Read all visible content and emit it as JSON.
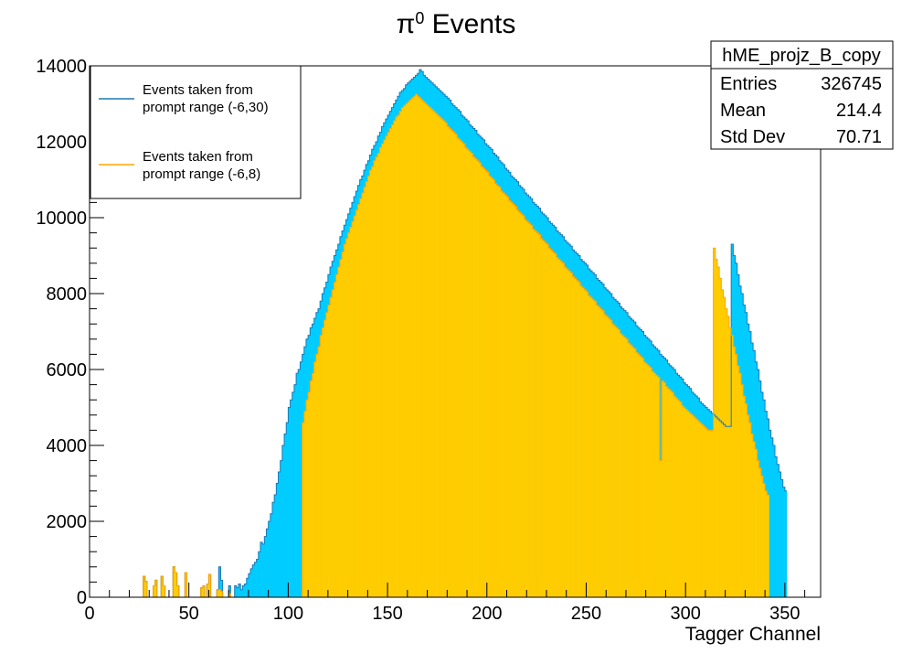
{
  "chart_data": {
    "type": "bar",
    "title_main": "π",
    "title_sup": "0",
    "title_rest": " Events",
    "xlabel": "Tagger Channel",
    "ylabel": "",
    "xlim": [
      0,
      368
    ],
    "ylim": [
      0,
      14000
    ],
    "x_ticks": [
      "0",
      "50",
      "100",
      "150",
      "200",
      "250",
      "300",
      "350"
    ],
    "y_ticks": [
      "0",
      "2000",
      "4000",
      "6000",
      "8000",
      "10000",
      "12000",
      "14000"
    ],
    "legend": {
      "placement": "top-left",
      "entries": [
        {
          "line1": "Events taken from",
          "line2": "prompt range (-6,30)",
          "color": "#1f78b4"
        },
        {
          "line1": "Events taken from",
          "line2": "prompt range (-6,8)",
          "color": "#ffa500"
        }
      ]
    },
    "stats_box": {
      "name": "hME_projz_B_copy",
      "rows": [
        {
          "label": "Entries",
          "value": "326745"
        },
        {
          "label": "Mean",
          "value": "214.4"
        },
        {
          "label": "Std Dev",
          "value": "70.71"
        }
      ]
    },
    "colors": {
      "series1_fill": "#00ccff",
      "series1_line": "#1f78b4",
      "series2_fill": "#ffcc00",
      "series2_line": "#ffa500"
    },
    "series": [
      {
        "name": "Events taken from prompt range (-6,30)",
        "values": [
          0,
          0,
          0,
          0,
          0,
          0,
          0,
          0,
          0,
          0,
          0,
          0,
          0,
          0,
          0,
          0,
          0,
          0,
          0,
          0,
          0,
          0,
          0,
          0,
          0,
          0,
          0,
          550,
          420,
          0,
          0,
          0,
          300,
          450,
          0,
          0,
          550,
          300,
          0,
          0,
          0,
          0,
          800,
          650,
          300,
          0,
          0,
          0,
          650,
          0,
          0,
          0,
          0,
          0,
          0,
          0,
          250,
          300,
          0,
          350,
          600,
          0,
          0,
          0,
          200,
          800,
          450,
          0,
          0,
          0,
          300,
          0,
          0,
          300,
          250,
          350,
          200,
          300,
          350,
          500,
          620,
          750,
          850,
          920,
          1000,
          1200,
          1450,
          1400,
          1600,
          1800,
          2000,
          2200,
          2500,
          2700,
          3000,
          3300,
          3600,
          4000,
          4300,
          4600,
          5000,
          5200,
          5400,
          5600,
          5900,
          6000,
          6200,
          6400,
          6600,
          6800,
          6900,
          7100,
          7200,
          7350,
          7500,
          7600,
          7800,
          8000,
          8150,
          8300,
          8500,
          8700,
          8850,
          9000,
          9150,
          9300,
          9500,
          9650,
          9800,
          9950,
          10100,
          10250,
          10400,
          10550,
          10700,
          10850,
          11000,
          11100,
          11250,
          11400,
          11500,
          11650,
          11800,
          11900,
          12000,
          12150,
          12250,
          12400,
          12500,
          12600,
          12700,
          12800,
          12900,
          13000,
          13100,
          13200,
          13300,
          13350,
          13400,
          13500,
          13550,
          13600,
          13650,
          13700,
          13750,
          13800,
          13900,
          13850,
          13750,
          13700,
          13650,
          13600,
          13550,
          13500,
          13450,
          13400,
          13350,
          13300,
          13250,
          13200,
          13150,
          13100,
          13000,
          12950,
          12900,
          12850,
          12800,
          12700,
          12650,
          12600,
          12550,
          12450,
          12400,
          12350,
          12300,
          12200,
          12150,
          12100,
          12050,
          11950,
          11900,
          11850,
          11800,
          11700,
          11650,
          11600,
          11500,
          11450,
          11400,
          11300,
          11250,
          11200,
          11100,
          11050,
          11000,
          10950,
          10850,
          10800,
          10750,
          10650,
          10600,
          10550,
          10500,
          10400,
          10350,
          10300,
          10250,
          10150,
          10100,
          10050,
          10000,
          9900,
          9850,
          9800,
          9750,
          9650,
          9600,
          9550,
          9500,
          9400,
          9350,
          9300,
          9250,
          9150,
          9100,
          9050,
          9000,
          8900,
          8850,
          8800,
          8750,
          8650,
          8600,
          8550,
          8500,
          8400,
          8350,
          8300,
          8250,
          8150,
          8100,
          8050,
          8000,
          7900,
          7850,
          7800,
          7750,
          7650,
          7600,
          7550,
          7500,
          7400,
          7350,
          7300,
          7250,
          7150,
          7100,
          7050,
          7000,
          6900,
          6850,
          6800,
          6750,
          6650,
          6600,
          6550,
          6500,
          6400,
          6350,
          6300,
          6250,
          6150,
          6100,
          6050,
          6000,
          5900,
          5850,
          5800,
          5750,
          5650,
          5600,
          5550,
          5500,
          5400,
          5350,
          5300,
          5250,
          5150,
          5100,
          5050,
          5000,
          4950,
          4900,
          4850,
          4800,
          4750,
          4700,
          4650,
          4600,
          4550,
          4500,
          4500,
          4500,
          9300,
          9000,
          8800,
          8500,
          8200,
          8000,
          7700,
          7500,
          7200,
          7000,
          6700,
          6500,
          6200,
          6000,
          5700,
          5400,
          5200,
          4900,
          4700,
          4400,
          4200,
          4000,
          3700,
          3500,
          3300,
          3100,
          2900,
          2800
        ]
      },
      {
        "name": "Events taken from prompt range (-6,8)",
        "values": [
          0,
          0,
          0,
          0,
          0,
          0,
          0,
          0,
          0,
          0,
          0,
          0,
          0,
          0,
          0,
          0,
          0,
          0,
          0,
          0,
          0,
          0,
          0,
          0,
          0,
          0,
          0,
          550,
          420,
          0,
          0,
          0,
          300,
          450,
          0,
          0,
          550,
          300,
          0,
          0,
          0,
          0,
          800,
          650,
          300,
          0,
          0,
          0,
          650,
          0,
          0,
          0,
          0,
          0,
          0,
          0,
          250,
          300,
          0,
          350,
          600,
          0,
          0,
          0,
          200,
          200,
          150,
          0,
          0,
          0,
          100,
          0,
          0,
          0,
          0,
          0,
          0,
          0,
          0,
          0,
          0,
          0,
          0,
          0,
          0,
          0,
          0,
          0,
          0,
          0,
          0,
          0,
          0,
          0,
          0,
          0,
          0,
          0,
          0,
          0,
          0,
          0,
          0,
          0,
          0,
          0,
          0,
          4600,
          4900,
          5200,
          5400,
          5700,
          5900,
          6200,
          6400,
          6600,
          6900,
          7100,
          7300,
          7500,
          7700,
          7900,
          8100,
          8300,
          8500,
          8700,
          8900,
          9100,
          9300,
          9450,
          9600,
          9750,
          9900,
          10050,
          10200,
          10350,
          10500,
          10650,
          10800,
          10950,
          11100,
          11250,
          11350,
          11500,
          11600,
          11700,
          11850,
          11950,
          12050,
          12150,
          12250,
          12350,
          12450,
          12550,
          12650,
          12700,
          12800,
          12900,
          12950,
          13000,
          13050,
          13100,
          13150,
          13200,
          13250,
          13200,
          13150,
          13100,
          13050,
          13000,
          12950,
          12900,
          12850,
          12800,
          12750,
          12700,
          12650,
          12600,
          12550,
          12500,
          12400,
          12350,
          12300,
          12250,
          12200,
          12100,
          12050,
          12000,
          11950,
          11850,
          11800,
          11750,
          11700,
          11600,
          11550,
          11500,
          11450,
          11350,
          11300,
          11250,
          11200,
          11100,
          11050,
          11000,
          10900,
          10850,
          10800,
          10700,
          10650,
          10600,
          10550,
          10450,
          10400,
          10350,
          10300,
          10200,
          10150,
          10100,
          10050,
          9950,
          9900,
          9850,
          9800,
          9700,
          9650,
          9600,
          9550,
          9450,
          9400,
          9350,
          9300,
          9200,
          9150,
          9100,
          9050,
          8950,
          8900,
          8850,
          8800,
          8700,
          8650,
          8600,
          8550,
          8450,
          8400,
          8350,
          8300,
          8200,
          8150,
          8100,
          8050,
          7950,
          7900,
          7850,
          7800,
          7700,
          7650,
          7600,
          7550,
          7450,
          7400,
          7350,
          7300,
          7200,
          7150,
          7100,
          7050,
          6950,
          6900,
          6850,
          6800,
          6700,
          6650,
          6600,
          6550,
          6450,
          6400,
          6350,
          6300,
          6200,
          6150,
          6100,
          6050,
          5950,
          5900,
          5850,
          5800,
          3600,
          5700,
          5650,
          5550,
          5500,
          5450,
          5400,
          5300,
          5250,
          5200,
          5150,
          5050,
          5000,
          4950,
          4900,
          4850,
          4800,
          4750,
          4700,
          4650,
          4600,
          4550,
          4500,
          4450,
          4400,
          4400,
          4400,
          9200,
          8900,
          8700,
          8400,
          8100,
          7900,
          7600,
          7400,
          7100,
          6900,
          6600,
          6400,
          6100,
          5900,
          5600,
          5300,
          5100,
          4800,
          4600,
          4300,
          4100,
          3900,
          3600,
          3400,
          3200,
          3000,
          2800,
          2700
        ]
      }
    ]
  }
}
